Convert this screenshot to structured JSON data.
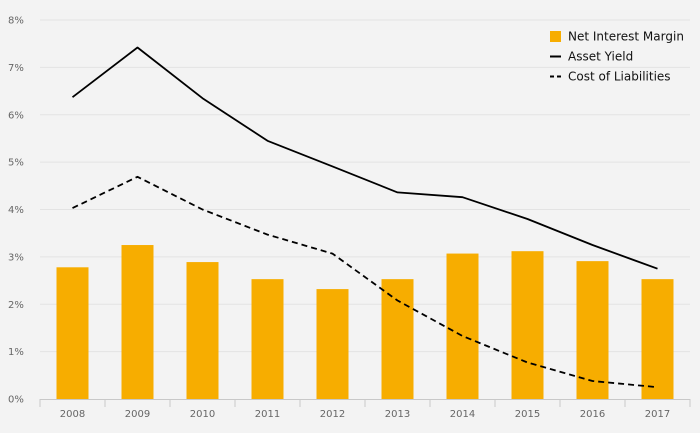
{
  "chart_data": {
    "type": "bar",
    "categories": [
      "2008",
      "2009",
      "2010",
      "2011",
      "2012",
      "2013",
      "2014",
      "2015",
      "2016",
      "2017"
    ],
    "y_ticks": [
      "0%",
      "1%",
      "2%",
      "3%",
      "4%",
      "5%",
      "6%",
      "7%",
      "8%"
    ],
    "ylim": [
      0,
      8
    ],
    "grid": true,
    "legend_position": "top-right",
    "series": [
      {
        "name": "Net Interest Margin",
        "kind": "bar",
        "color": "#f7ad00",
        "values": [
          2.78,
          3.25,
          2.89,
          2.53,
          2.32,
          2.53,
          3.07,
          3.12,
          2.91,
          2.53
        ]
      },
      {
        "name": "Asset Yield",
        "kind": "line",
        "style": "solid",
        "color": "#000000",
        "values": [
          6.37,
          7.42,
          6.35,
          5.45,
          4.91,
          4.36,
          4.26,
          3.8,
          3.25,
          2.75
        ]
      },
      {
        "name": "Cost of Liabilities",
        "kind": "line",
        "style": "dashed",
        "color": "#000000",
        "values": [
          4.03,
          4.69,
          4.0,
          3.47,
          3.07,
          2.08,
          1.33,
          0.77,
          0.38,
          0.25
        ]
      }
    ],
    "title": "",
    "xlabel": "",
    "ylabel": ""
  }
}
